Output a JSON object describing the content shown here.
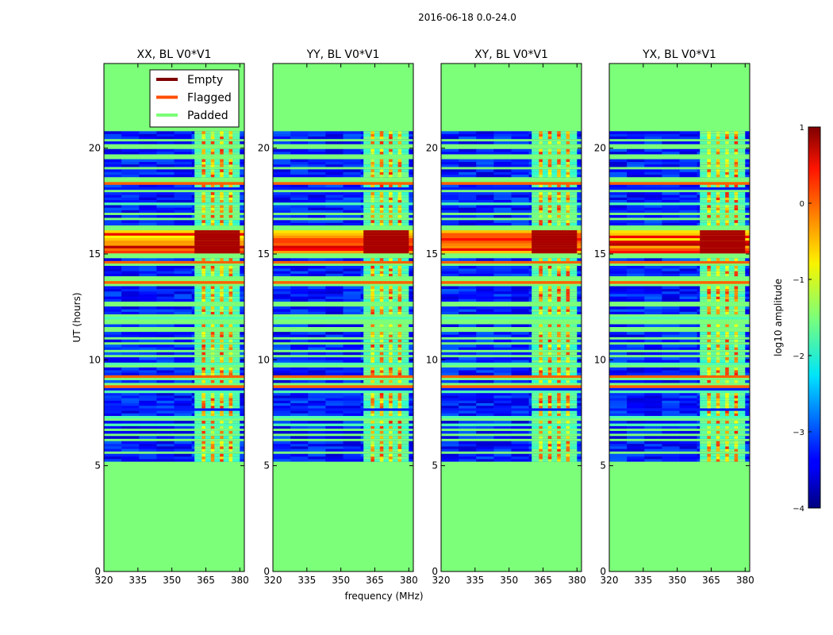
{
  "chart_data": {
    "type": "heatmap",
    "title": "2016-06-18 0.0-24.0",
    "xlabel": "frequency (MHz)",
    "ylabel": "UT (hours)",
    "xlim": [
      320,
      382
    ],
    "ylim": [
      0,
      24
    ],
    "x_ticks": [
      "320",
      "335",
      "350",
      "365",
      "380"
    ],
    "y_ticks": [
      "0",
      "5",
      "10",
      "15",
      "20"
    ],
    "panels": [
      {
        "title": "XX, BL V0*V1"
      },
      {
        "title": "YY, BL V0*V1"
      },
      {
        "title": "XY, BL V0*V1"
      },
      {
        "title": "YX, BL V0*V1"
      }
    ],
    "data_range_hours": [
      5.2,
      20.7
    ],
    "bright_band_mhz": [
      360,
      380
    ],
    "rfi_hours": [
      15.0,
      16.1
    ],
    "colorbar": {
      "label": "log10 amplitude",
      "range": [
        -4,
        1
      ],
      "ticks": [
        "1",
        "0",
        "−1",
        "−2",
        "−3",
        "−4"
      ]
    },
    "legend": {
      "placement": "upper-right of first panel",
      "items": [
        {
          "label": "Empty",
          "color": "#7f0000"
        },
        {
          "label": "Flagged",
          "color": "#ff4f00"
        },
        {
          "label": "Padded",
          "color": "#7cff79"
        }
      ]
    }
  }
}
